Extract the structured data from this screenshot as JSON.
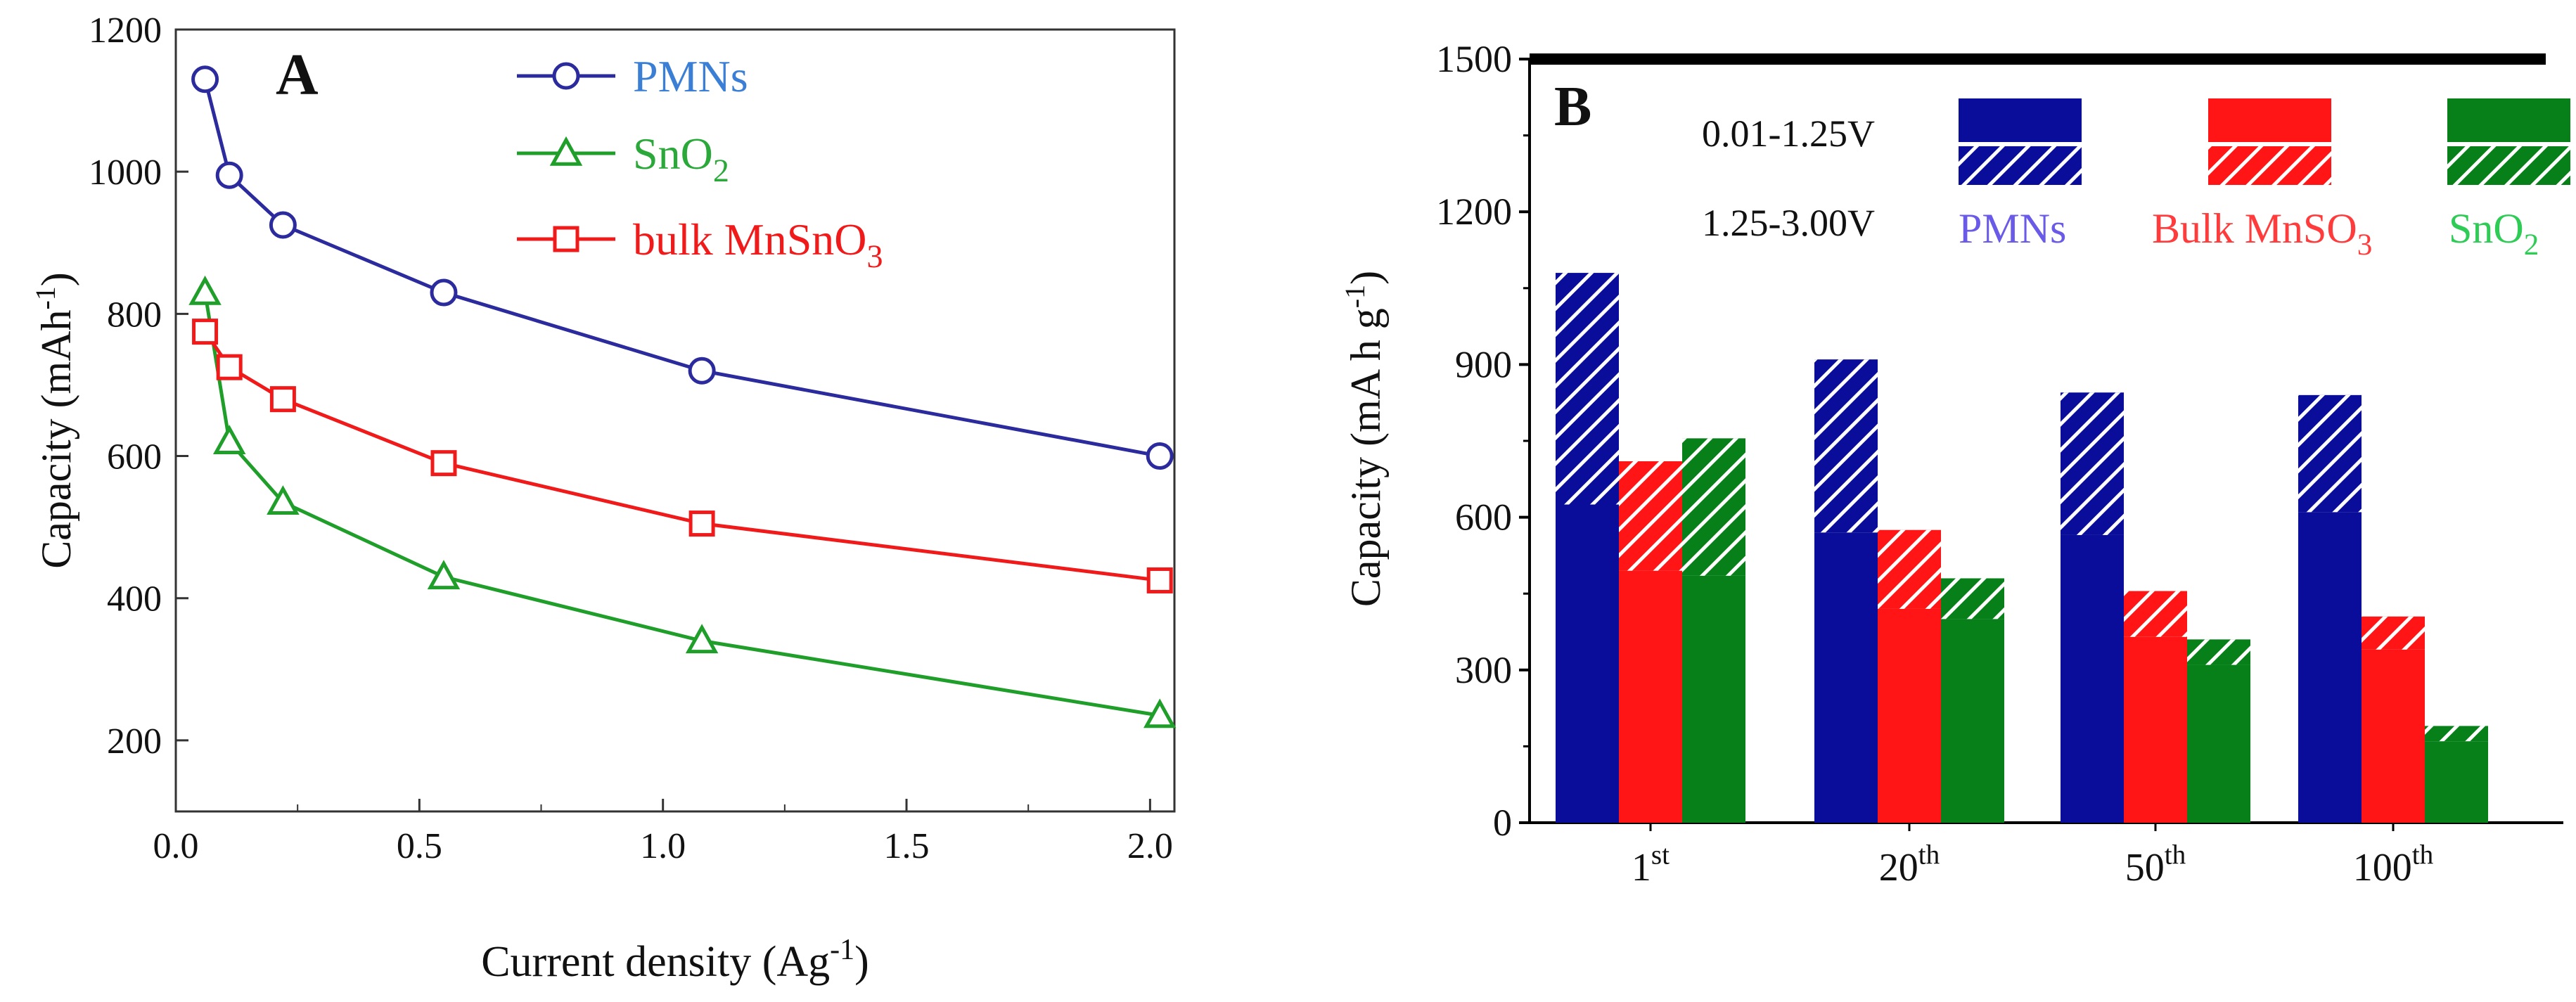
{
  "chart_data": [
    {
      "type": "line",
      "panel_label": "A",
      "xlabel": "Current density (Ag",
      "xlabel_sup": "-1",
      "xlabel_suffix": ")",
      "ylabel": "Capacity (mAh",
      "ylabel_sup": "-1",
      "ylabel_suffix": ")",
      "xlim": [
        0.0,
        2.05
      ],
      "ylim": [
        100,
        1200
      ],
      "xticks": [
        "0.0",
        "0.5",
        "1.0",
        "1.5",
        "2.0"
      ],
      "yticks": [
        "200",
        "400",
        "600",
        "800",
        "1000",
        "1200"
      ],
      "grid": false,
      "legend_position": "top-center",
      "series": [
        {
          "name": "PMNs",
          "color": "#2b2b9e",
          "label_color": "#3a7fd5",
          "marker": "circle",
          "x": [
            0.06,
            0.11,
            0.22,
            0.55,
            1.08,
            2.02
          ],
          "y": [
            1130,
            995,
            925,
            830,
            720,
            600
          ]
        },
        {
          "name": "SnO",
          "name_sub": "2",
          "color": "#1f9e2a",
          "label_color": "#2aa83a",
          "marker": "triangle",
          "x": [
            0.06,
            0.11,
            0.22,
            0.55,
            1.08,
            2.02
          ],
          "y": [
            830,
            620,
            535,
            430,
            340,
            235
          ]
        },
        {
          "name": "bulk  MnSnO",
          "name_sub": "3",
          "color": "#f01a1a",
          "label_color": "#f01a1a",
          "marker": "square",
          "x": [
            0.06,
            0.11,
            0.22,
            0.55,
            1.08,
            2.02
          ],
          "y": [
            775,
            725,
            680,
            590,
            505,
            425
          ]
        }
      ]
    },
    {
      "type": "bar",
      "panel_label": "B",
      "ylabel": "Capacity (mA h g",
      "ylabel_sup": "-1",
      "ylabel_suffix": ")",
      "ylim": [
        0,
        1500
      ],
      "yticks": [
        "0",
        "300",
        "600",
        "900",
        "1200",
        "1500"
      ],
      "categories": [
        {
          "main": "1",
          "sup": "st"
        },
        {
          "main": "20",
          "sup": "th"
        },
        {
          "main": "50",
          "sup": "th"
        },
        {
          "main": "100",
          "sup": "th"
        }
      ],
      "legend_position": "top-right",
      "legend_fill_labels": {
        "solid": "0.01-1.25V",
        "hatched": "1.25-3.00V"
      },
      "series": [
        {
          "name": "PMNs",
          "color": "#0a0d9a",
          "label_color": "#6a5ae8",
          "solid": [
            625,
            570,
            565,
            610
          ],
          "total": [
            1080,
            910,
            845,
            840
          ]
        },
        {
          "name": "Bulk MnSO",
          "name_sub": "3",
          "color": "#ff1515",
          "label_color": "#ff3b3b",
          "solid": [
            495,
            420,
            365,
            340
          ],
          "total": [
            710,
            575,
            455,
            405
          ]
        },
        {
          "name": "SnO",
          "name_sub": "2",
          "color": "#07801a",
          "label_color": "#2ecc55",
          "solid": [
            485,
            400,
            310,
            160
          ],
          "total": [
            755,
            480,
            360,
            190
          ]
        }
      ]
    }
  ]
}
